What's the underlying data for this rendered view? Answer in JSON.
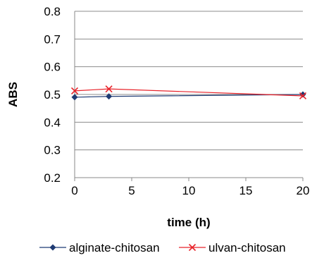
{
  "chart_data": {
    "type": "line",
    "xlabel": "time (h)",
    "ylabel": "ABS",
    "xlim": [
      0,
      20
    ],
    "ylim": [
      0.2,
      0.8
    ],
    "xticks": [
      0,
      5,
      10,
      15,
      20
    ],
    "yticks": [
      0.2,
      0.3,
      0.4,
      0.5,
      0.6,
      0.7,
      0.8
    ],
    "xtick_labels": [
      "0",
      "5",
      "10",
      "15",
      "20"
    ],
    "ytick_labels": [
      "0.2",
      "0.3",
      "0.4",
      "0.5",
      "0.6",
      "0.7",
      "0.8"
    ],
    "grid": "horizontal",
    "legend_position": "bottom",
    "series": [
      {
        "name": "alginate-chitosan",
        "color": "#1f3b73",
        "marker": "diamond",
        "x": [
          0,
          3,
          20
        ],
        "y": [
          0.49,
          0.493,
          0.5
        ]
      },
      {
        "name": "ulvan-chitosan",
        "color": "#e8232a",
        "marker": "x",
        "x": [
          0,
          3,
          20
        ],
        "y": [
          0.513,
          0.52,
          0.495
        ]
      }
    ]
  }
}
